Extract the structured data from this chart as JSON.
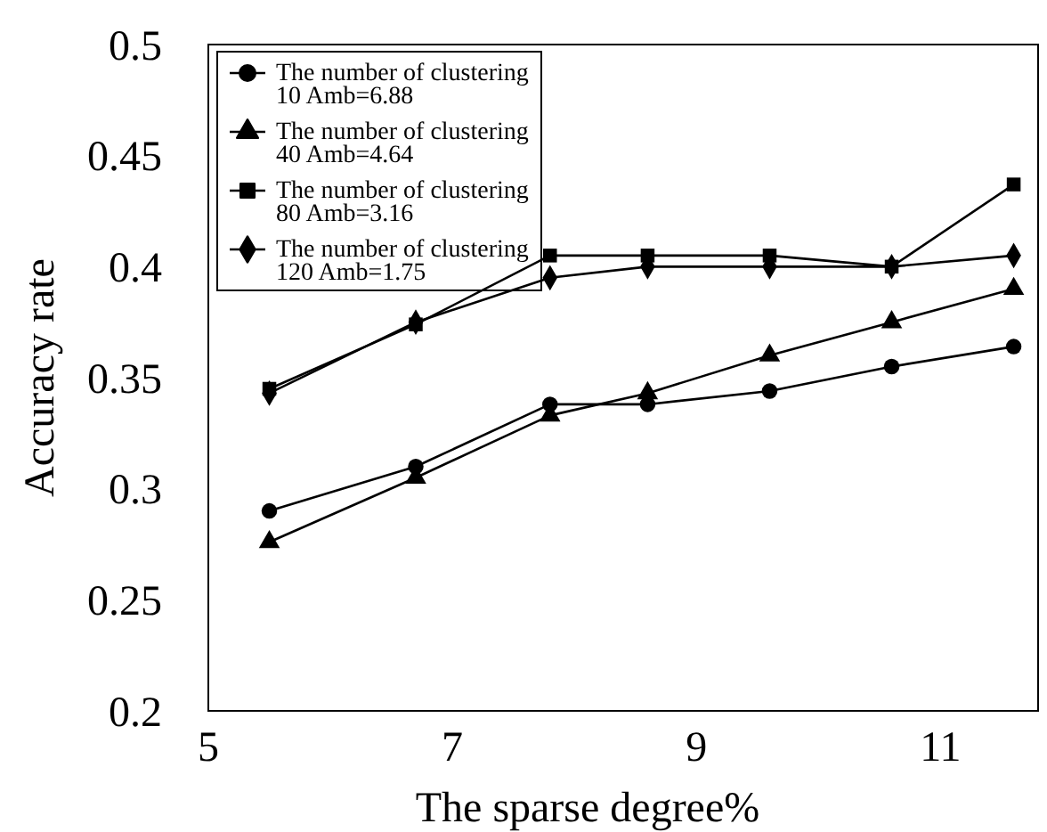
{
  "chart_data": {
    "type": "line",
    "xlabel": "The sparse degree%",
    "ylabel": "Accuracy rate",
    "x": [
      5.5,
      6.7,
      7.8,
      8.6,
      9.6,
      10.6,
      11.6
    ],
    "xlim": [
      5,
      11.8
    ],
    "xticks": [
      5,
      7,
      9,
      11
    ],
    "ylim": [
      0.2,
      0.5
    ],
    "yticks": [
      0.2,
      0.25,
      0.3,
      0.35,
      0.4,
      0.45,
      0.5
    ],
    "grid": false,
    "legend": "top left",
    "line_style": "solid",
    "series": [
      {
        "name": "The number of clustering\n10 Amb=6.88",
        "color": "#000000",
        "marker": "circle",
        "values": [
          0.29,
          0.31,
          0.338,
          0.338,
          0.344,
          0.355,
          0.364
        ]
      },
      {
        "name": "The number of clustering\n40 Amb=4.64",
        "color": "#000000",
        "marker": "triangle",
        "values": [
          0.276,
          0.305,
          0.333,
          0.343,
          0.36,
          0.375,
          0.39
        ]
      },
      {
        "name": "The number of clustering\n80 Amb=3.16",
        "color": "#000000",
        "marker": "square",
        "values": [
          0.345,
          0.374,
          0.405,
          0.405,
          0.405,
          0.4,
          0.437
        ]
      },
      {
        "name": "The number of clustering\n120 Amb=1.75",
        "color": "#000000",
        "marker": "diamond",
        "values": [
          0.343,
          0.375,
          0.395,
          0.4,
          0.4,
          0.4,
          0.405
        ]
      }
    ]
  }
}
